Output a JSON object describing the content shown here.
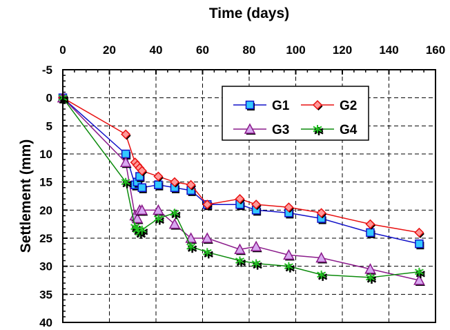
{
  "chart_data": {
    "type": "line",
    "xlabel": "Time (days)",
    "ylabel": "Settlement (mm)",
    "x_ticks": [
      "0",
      "20",
      "40",
      "60",
      "80",
      "100",
      "120",
      "140",
      "160"
    ],
    "y_ticks": [
      "-5",
      "0",
      "5",
      "10",
      "15",
      "20",
      "25",
      "30",
      "35",
      "40"
    ],
    "xlim": [
      0,
      160
    ],
    "ylim": [
      -5,
      40
    ],
    "y_inverted": true,
    "x_axis_position": "top",
    "grid": true,
    "legend_position": "top-right",
    "series": [
      {
        "name": "G1",
        "color": "#1010c8",
        "marker": "square",
        "marker_fill": "#33c8ff",
        "x": [
          0,
          27,
          31,
          32,
          33,
          34,
          41,
          48,
          55,
          62,
          76,
          83,
          97,
          111,
          132,
          153
        ],
        "y": [
          0,
          10,
          15.5,
          15,
          14,
          16,
          15.5,
          16,
          16.5,
          19,
          19,
          20,
          20.5,
          21.5,
          24,
          26
        ]
      },
      {
        "name": "G2",
        "color": "#e81010",
        "marker": "diamond",
        "marker_fill": "#ff9999",
        "x": [
          0,
          27,
          31,
          32,
          33,
          34,
          41,
          48,
          55,
          62,
          76,
          83,
          97,
          111,
          132,
          153
        ],
        "y": [
          0,
          6.5,
          11.5,
          12,
          12.5,
          13,
          14,
          15,
          15.5,
          19,
          18,
          19,
          19.5,
          20.5,
          22.5,
          24
        ]
      },
      {
        "name": "G3",
        "color": "#8a1a8a",
        "marker": "triangle",
        "marker_fill": "#d8a8f0",
        "x": [
          0,
          27,
          31,
          32,
          33,
          34,
          41,
          48,
          55,
          62,
          76,
          83,
          97,
          111,
          132,
          153
        ],
        "y": [
          0,
          11.5,
          21,
          21.5,
          20,
          20,
          20,
          22.5,
          25,
          25,
          27,
          26.5,
          28,
          28.5,
          30.5,
          32.5
        ]
      },
      {
        "name": "G4",
        "color": "#0a8a0a",
        "marker": "asterisk",
        "marker_fill": "#20c020",
        "x": [
          0,
          27,
          31,
          32,
          33,
          34,
          41,
          48,
          55,
          62,
          76,
          83,
          97,
          111,
          132,
          153
        ],
        "y": [
          0,
          15,
          23,
          23.5,
          24,
          23.5,
          21.5,
          20.5,
          26.5,
          27.5,
          29,
          29.5,
          30,
          31.5,
          32,
          31
        ]
      }
    ]
  }
}
